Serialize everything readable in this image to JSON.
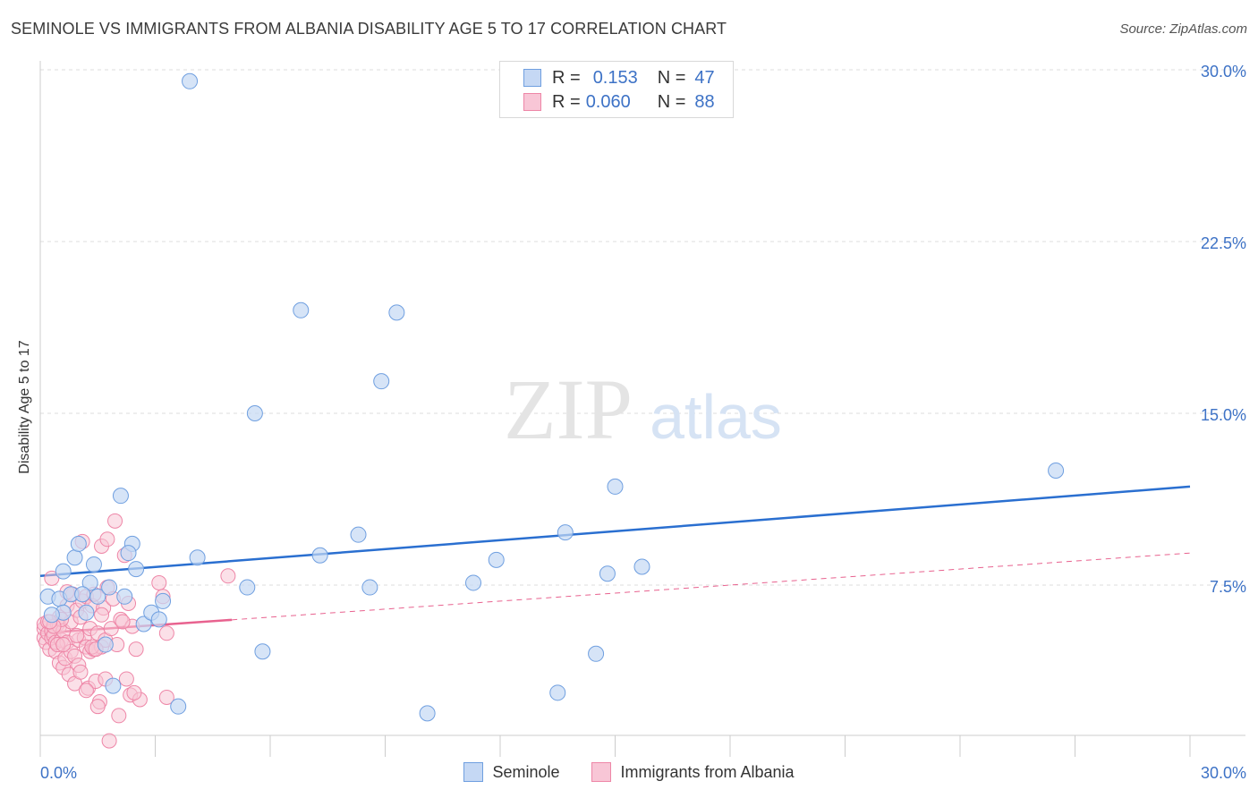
{
  "title": "SEMINOLE VS IMMIGRANTS FROM ALBANIA DISABILITY AGE 5 TO 17 CORRELATION CHART",
  "source": "Source: ZipAtlas.com",
  "watermark": {
    "zip": "ZIP",
    "atlas": "atlas"
  },
  "legend_stats": [
    {
      "r_label": "R =",
      "r_value": "0.153",
      "n_label": "N =",
      "n_value": "47"
    },
    {
      "r_label": "R =",
      "r_value": "0.060",
      "n_label": "N =",
      "n_value": "88"
    }
  ],
  "chart_data": {
    "type": "scatter",
    "title": "SEMINOLE VS IMMIGRANTS FROM ALBANIA DISABILITY AGE 5 TO 17 CORRELATION CHART",
    "xlabel": "",
    "ylabel": "Disability Age 5 to 17",
    "xlim": [
      0,
      30
    ],
    "ylim": [
      0,
      31
    ],
    "x_tick_labels": [
      "0.0%",
      "30.0%"
    ],
    "y_ticks": [
      7.5,
      15.0,
      22.5,
      30.0
    ],
    "y_tick_labels": [
      "7.5%",
      "15.0%",
      "22.5%",
      "30.0%"
    ],
    "grid": true,
    "legend_position": "bottom-center",
    "colors": {
      "seminole": "#6f9fe0",
      "seminole_fill": "#c5d8f4",
      "seminole_line": "#2a6fd0",
      "albania": "#ee86a7",
      "albania_fill": "#f8c6d6",
      "albania_line": "#e8628f",
      "axis_label": "#3d72c6"
    },
    "series": [
      {
        "name": "Seminole",
        "r": 0.153,
        "n": 47,
        "trend": {
          "x": [
            0,
            30
          ],
          "y": [
            7.9,
            11.8
          ]
        },
        "points": [
          [
            0.2,
            7.0
          ],
          [
            0.5,
            6.9
          ],
          [
            0.6,
            6.3
          ],
          [
            0.6,
            8.1
          ],
          [
            0.8,
            7.1
          ],
          [
            0.9,
            8.7
          ],
          [
            1.0,
            9.3
          ],
          [
            1.2,
            6.3
          ],
          [
            1.3,
            7.6
          ],
          [
            1.4,
            8.4
          ],
          [
            1.5,
            7.0
          ],
          [
            1.7,
            4.9
          ],
          [
            1.8,
            7.4
          ],
          [
            2.1,
            11.4
          ],
          [
            2.2,
            7.0
          ],
          [
            2.4,
            9.3
          ],
          [
            2.5,
            8.2
          ],
          [
            2.7,
            5.8
          ],
          [
            2.9,
            6.3
          ],
          [
            3.1,
            6.0
          ],
          [
            3.2,
            6.8
          ],
          [
            3.6,
            2.2
          ],
          [
            3.9,
            29.5
          ],
          [
            4.1,
            8.7
          ],
          [
            5.4,
            7.4
          ],
          [
            5.6,
            15.0
          ],
          [
            5.8,
            4.6
          ],
          [
            6.8,
            19.5
          ],
          [
            7.3,
            8.8
          ],
          [
            8.3,
            9.7
          ],
          [
            8.6,
            7.4
          ],
          [
            8.9,
            16.4
          ],
          [
            9.3,
            19.4
          ],
          [
            10.1,
            1.9
          ],
          [
            11.3,
            7.6
          ],
          [
            11.9,
            8.6
          ],
          [
            13.5,
            2.8
          ],
          [
            13.7,
            9.8
          ],
          [
            14.5,
            4.5
          ],
          [
            14.8,
            8.0
          ],
          [
            15.0,
            11.8
          ],
          [
            15.7,
            8.3
          ],
          [
            26.5,
            12.5
          ],
          [
            0.3,
            6.2
          ],
          [
            1.9,
            3.1
          ],
          [
            2.3,
            8.9
          ],
          [
            1.1,
            7.1
          ]
        ]
      },
      {
        "name": "Immigrants from Albania",
        "r": 0.06,
        "n": 88,
        "trend": {
          "x": [
            0,
            30
          ],
          "y": [
            5.4,
            8.9
          ]
        },
        "trend_solid_until_x": 5.0,
        "points": [
          [
            0.1,
            5.2
          ],
          [
            0.1,
            5.6
          ],
          [
            0.1,
            5.8
          ],
          [
            0.15,
            5.0
          ],
          [
            0.2,
            5.4
          ],
          [
            0.2,
            5.9
          ],
          [
            0.25,
            4.7
          ],
          [
            0.3,
            5.2
          ],
          [
            0.3,
            5.5
          ],
          [
            0.3,
            7.8
          ],
          [
            0.35,
            5.3
          ],
          [
            0.4,
            4.6
          ],
          [
            0.4,
            5.0
          ],
          [
            0.45,
            5.8
          ],
          [
            0.5,
            6.1
          ],
          [
            0.5,
            4.1
          ],
          [
            0.5,
            5.7
          ],
          [
            0.55,
            5.1
          ],
          [
            0.6,
            3.9
          ],
          [
            0.6,
            5.5
          ],
          [
            0.65,
            4.3
          ],
          [
            0.7,
            6.6
          ],
          [
            0.7,
            5.0
          ],
          [
            0.75,
            3.6
          ],
          [
            0.8,
            5.9
          ],
          [
            0.8,
            4.6
          ],
          [
            0.85,
            7.1
          ],
          [
            0.9,
            3.2
          ],
          [
            0.9,
            4.4
          ],
          [
            0.95,
            6.4
          ],
          [
            1.0,
            5.1
          ],
          [
            1.0,
            4.0
          ],
          [
            1.05,
            3.7
          ],
          [
            1.1,
            6.8
          ],
          [
            1.1,
            9.4
          ],
          [
            1.15,
            5.2
          ],
          [
            1.2,
            4.8
          ],
          [
            1.2,
            7.0
          ],
          [
            1.25,
            3.0
          ],
          [
            1.3,
            4.6
          ],
          [
            1.3,
            5.6
          ],
          [
            1.35,
            6.6
          ],
          [
            1.4,
            7.1
          ],
          [
            1.4,
            4.7
          ],
          [
            1.45,
            3.3
          ],
          [
            1.5,
            5.4
          ],
          [
            1.55,
            2.4
          ],
          [
            1.6,
            9.2
          ],
          [
            1.6,
            4.8
          ],
          [
            1.65,
            6.5
          ],
          [
            1.7,
            3.4
          ],
          [
            1.7,
            5.1
          ],
          [
            1.75,
            7.4
          ],
          [
            1.8,
            0.7
          ],
          [
            1.85,
            5.6
          ],
          [
            1.9,
            6.9
          ],
          [
            1.95,
            10.3
          ],
          [
            2.0,
            4.9
          ],
          [
            2.05,
            1.8
          ],
          [
            2.1,
            6.0
          ],
          [
            2.2,
            8.8
          ],
          [
            2.25,
            3.4
          ],
          [
            2.3,
            6.7
          ],
          [
            2.35,
            2.7
          ],
          [
            2.4,
            5.7
          ],
          [
            2.5,
            4.7
          ],
          [
            2.6,
            2.5
          ],
          [
            3.1,
            7.6
          ],
          [
            3.2,
            7.0
          ],
          [
            3.3,
            5.4
          ],
          [
            3.3,
            2.6
          ],
          [
            4.9,
            7.9
          ],
          [
            1.5,
            2.2
          ],
          [
            1.75,
            9.5
          ],
          [
            0.45,
            4.9
          ],
          [
            0.55,
            6.0
          ],
          [
            2.45,
            2.8
          ],
          [
            1.2,
            2.9
          ],
          [
            0.7,
            7.2
          ],
          [
            1.35,
            4.8
          ],
          [
            0.95,
            5.3
          ],
          [
            1.6,
            6.2
          ],
          [
            0.35,
            5.7
          ],
          [
            0.6,
            4.9
          ],
          [
            1.05,
            6.1
          ],
          [
            2.15,
            5.9
          ],
          [
            0.25,
            5.9
          ],
          [
            1.45,
            4.7
          ]
        ]
      }
    ]
  },
  "legend_bottom": [
    "Seminole",
    "Immigrants from Albania"
  ]
}
